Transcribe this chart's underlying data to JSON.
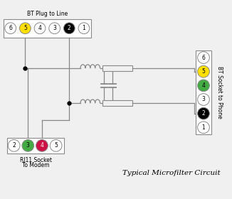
{
  "title": "Typical Microfilter Circuit",
  "bt_plug_label": "BT Plug to Line",
  "bt_socket_label": "BT Socket to Phone",
  "rj11_label1": "RJ11 Socket",
  "rj11_label2": "To Modem",
  "bt_plug_pins": [
    {
      "num": "6",
      "color": "white",
      "text_color": "black"
    },
    {
      "num": "5",
      "color": "#FFE000",
      "text_color": "black"
    },
    {
      "num": "4",
      "color": "white",
      "text_color": "black"
    },
    {
      "num": "3",
      "color": "white",
      "text_color": "black"
    },
    {
      "num": "2",
      "color": "black",
      "text_color": "white"
    },
    {
      "num": "1",
      "color": "white",
      "text_color": "black"
    }
  ],
  "bt_socket_pins": [
    {
      "num": "6",
      "color": "white",
      "text_color": "black"
    },
    {
      "num": "5",
      "color": "#FFE000",
      "text_color": "black"
    },
    {
      "num": "4",
      "color": "#44AA44",
      "text_color": "black"
    },
    {
      "num": "3",
      "color": "white",
      "text_color": "black"
    },
    {
      "num": "2",
      "color": "black",
      "text_color": "white"
    },
    {
      "num": "1",
      "color": "white",
      "text_color": "black"
    }
  ],
  "rj11_pins": [
    {
      "num": "2",
      "color": "white",
      "text_color": "black"
    },
    {
      "num": "3",
      "color": "#44AA44",
      "text_color": "black"
    },
    {
      "num": "4",
      "color": "#CC1144",
      "text_color": "white"
    },
    {
      "num": "5",
      "color": "white",
      "text_color": "black"
    }
  ],
  "background": "#f0f0f0",
  "wire_color": "#888888",
  "pin_edge_color": "#888888"
}
